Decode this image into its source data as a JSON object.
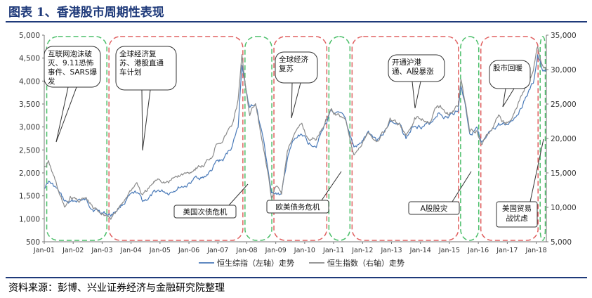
{
  "title": "图表 1、香港股市周期性表现",
  "source": "资料来源：彭博、兴业证券经济与金融研究院整理",
  "chart_data": {
    "type": "line",
    "x_ticks": [
      "Jan-01",
      "Jan-02",
      "Jan-03",
      "Jan-04",
      "Jan-05",
      "Jan-06",
      "Jan-07",
      "Jan-08",
      "Jan-09",
      "Jan-10",
      "Jan-11",
      "Jan-12",
      "Jan-13",
      "Jan-14",
      "Jan-15",
      "Jan-16",
      "Jan-17",
      "Jan-18"
    ],
    "x_range": [
      2001.0,
      2018.35
    ],
    "y_left": {
      "range": [
        500,
        5000
      ],
      "ticks": [
        "500",
        "1,000",
        "1,500",
        "2,000",
        "2,500",
        "3,000",
        "3,500",
        "4,000",
        "4,500",
        "5,000"
      ]
    },
    "y_right": {
      "range": [
        5000,
        35000
      ],
      "ticks": [
        "5,000",
        "10,000",
        "15,000",
        "20,000",
        "25,000",
        "30,000",
        "35,000"
      ]
    },
    "series": [
      {
        "name": "恒生综指（左轴）走势",
        "axis": "left",
        "color": "#4a7ab8",
        "points": [
          [
            2001.0,
            1700
          ],
          [
            2001.15,
            1820
          ],
          [
            2001.4,
            1660
          ],
          [
            2001.7,
            1370
          ],
          [
            2001.9,
            1330
          ],
          [
            2002.2,
            1420
          ],
          [
            2002.45,
            1380
          ],
          [
            2002.7,
            1230
          ],
          [
            2002.95,
            1160
          ],
          [
            2003.3,
            1080
          ],
          [
            2003.6,
            1260
          ],
          [
            2003.9,
            1450
          ],
          [
            2004.2,
            1540
          ],
          [
            2004.4,
            1380
          ],
          [
            2004.7,
            1490
          ],
          [
            2004.95,
            1600
          ],
          [
            2005.3,
            1580
          ],
          [
            2005.6,
            1700
          ],
          [
            2005.95,
            1740
          ],
          [
            2006.3,
            1910
          ],
          [
            2006.5,
            1890
          ],
          [
            2006.8,
            2060
          ],
          [
            2006.95,
            2210
          ],
          [
            2007.2,
            2280
          ],
          [
            2007.5,
            2600
          ],
          [
            2007.7,
            3000
          ],
          [
            2007.83,
            4400
          ],
          [
            2007.95,
            3850
          ],
          [
            2008.1,
            3400
          ],
          [
            2008.3,
            3500
          ],
          [
            2008.55,
            2800
          ],
          [
            2008.75,
            2000
          ],
          [
            2008.85,
            1500
          ],
          [
            2009.0,
            1580
          ],
          [
            2009.2,
            1500
          ],
          [
            2009.4,
            2300
          ],
          [
            2009.6,
            2650
          ],
          [
            2009.9,
            2850
          ],
          [
            2010.1,
            2650
          ],
          [
            2010.4,
            2650
          ],
          [
            2010.7,
            3050
          ],
          [
            2010.9,
            3300
          ],
          [
            2011.1,
            3250
          ],
          [
            2011.4,
            3150
          ],
          [
            2011.7,
            2550
          ],
          [
            2011.9,
            2600
          ],
          [
            2012.2,
            2850
          ],
          [
            2012.5,
            2750
          ],
          [
            2012.8,
            2950
          ],
          [
            2012.95,
            3150
          ],
          [
            2013.3,
            3000
          ],
          [
            2013.5,
            2750
          ],
          [
            2013.8,
            3050
          ],
          [
            2014.0,
            3050
          ],
          [
            2014.3,
            3050
          ],
          [
            2014.6,
            3320
          ],
          [
            2014.95,
            3200
          ],
          [
            2015.3,
            3400
          ],
          [
            2015.4,
            3900
          ],
          [
            2015.55,
            3500
          ],
          [
            2015.7,
            2900
          ],
          [
            2015.95,
            2960
          ],
          [
            2016.1,
            2560
          ],
          [
            2016.4,
            2800
          ],
          [
            2016.7,
            3050
          ],
          [
            2016.95,
            3000
          ],
          [
            2017.3,
            3270
          ],
          [
            2017.6,
            3600
          ],
          [
            2017.9,
            3950
          ],
          [
            2018.05,
            4550
          ],
          [
            2018.2,
            4250
          ],
          [
            2018.35,
            4200
          ]
        ]
      },
      {
        "name": "恒生指数（右轴）走势",
        "axis": "right",
        "color": "#8a8a8a",
        "points": [
          [
            2001.0,
            15800
          ],
          [
            2001.15,
            16400
          ],
          [
            2001.4,
            13500
          ],
          [
            2001.7,
            9800
          ],
          [
            2001.9,
            11400
          ],
          [
            2002.2,
            11000
          ],
          [
            2002.45,
            11200
          ],
          [
            2002.7,
            9700
          ],
          [
            2002.95,
            9300
          ],
          [
            2003.3,
            8600
          ],
          [
            2003.6,
            9800
          ],
          [
            2003.9,
            12000
          ],
          [
            2004.2,
            13600
          ],
          [
            2004.4,
            11600
          ],
          [
            2004.7,
            13000
          ],
          [
            2004.95,
            14200
          ],
          [
            2005.3,
            13600
          ],
          [
            2005.6,
            14500
          ],
          [
            2005.95,
            14900
          ],
          [
            2006.3,
            16000
          ],
          [
            2006.5,
            16000
          ],
          [
            2006.8,
            17500
          ],
          [
            2006.95,
            19500
          ],
          [
            2007.2,
            20100
          ],
          [
            2007.5,
            22000
          ],
          [
            2007.7,
            25500
          ],
          [
            2007.83,
            31600
          ],
          [
            2007.95,
            27800
          ],
          [
            2008.1,
            23500
          ],
          [
            2008.3,
            25000
          ],
          [
            2008.55,
            19000
          ],
          [
            2008.75,
            14000
          ],
          [
            2008.85,
            11000
          ],
          [
            2009.0,
            13000
          ],
          [
            2009.2,
            12000
          ],
          [
            2009.4,
            18000
          ],
          [
            2009.6,
            20500
          ],
          [
            2009.9,
            21800
          ],
          [
            2010.1,
            20000
          ],
          [
            2010.4,
            19800
          ],
          [
            2010.7,
            22500
          ],
          [
            2010.9,
            24500
          ],
          [
            2011.1,
            23500
          ],
          [
            2011.4,
            23000
          ],
          [
            2011.7,
            18000
          ],
          [
            2011.9,
            18500
          ],
          [
            2012.2,
            21000
          ],
          [
            2012.5,
            19500
          ],
          [
            2012.8,
            21500
          ],
          [
            2012.95,
            22700
          ],
          [
            2013.3,
            22000
          ],
          [
            2013.5,
            20200
          ],
          [
            2013.8,
            23000
          ],
          [
            2014.0,
            23000
          ],
          [
            2014.3,
            22800
          ],
          [
            2014.6,
            24800
          ],
          [
            2014.95,
            23700
          ],
          [
            2015.3,
            24800
          ],
          [
            2015.4,
            28500
          ],
          [
            2015.55,
            25000
          ],
          [
            2015.7,
            21000
          ],
          [
            2015.95,
            21500
          ],
          [
            2016.1,
            19000
          ],
          [
            2016.4,
            20800
          ],
          [
            2016.7,
            23300
          ],
          [
            2016.95,
            22000
          ],
          [
            2017.3,
            24300
          ],
          [
            2017.6,
            27000
          ],
          [
            2017.9,
            29600
          ],
          [
            2018.05,
            33000
          ],
          [
            2018.2,
            30500
          ],
          [
            2018.35,
            30000
          ]
        ]
      }
    ],
    "regions": [
      {
        "start": 2001.05,
        "end": 2003.2,
        "color": "#4cbf6a"
      },
      {
        "start": 2003.2,
        "end": 2007.9,
        "color": "#e06060"
      },
      {
        "start": 2007.9,
        "end": 2008.9,
        "color": "#4cbf6a"
      },
      {
        "start": 2008.9,
        "end": 2010.8,
        "color": "#e06060"
      },
      {
        "start": 2010.8,
        "end": 2011.6,
        "color": "#4cbf6a"
      },
      {
        "start": 2011.6,
        "end": 2015.35,
        "color": "#e06060"
      },
      {
        "start": 2015.35,
        "end": 2016.05,
        "color": "#4cbf6a"
      },
      {
        "start": 2016.05,
        "end": 2018.1,
        "color": "#e06060"
      },
      {
        "start": 2018.1,
        "end": 2018.35,
        "color": "#4cbf6a"
      }
    ],
    "annotations": [
      {
        "lines": [
          "互联网泡沫破",
          "灭、9.11恐怖",
          "事件、SARS爆",
          "发"
        ],
        "style": "bubble",
        "x": 2001.7,
        "y": 1950
      },
      {
        "lines": [
          "全球经济复",
          "苏、港股直通",
          "车计划"
        ],
        "style": "bubble",
        "x": 2004.8,
        "y": 1550
      },
      {
        "lines": [
          "全球经济",
          "复苏"
        ],
        "style": "bubble",
        "x": 2008.9,
        "y": 2750
      },
      {
        "lines": [
          "开通沪港",
          "通、A股暴涨"
        ],
        "style": "bubble",
        "x": 2014.0,
        "y": 3220
      },
      {
        "lines": [
          "股市回暖"
        ],
        "style": "bubble",
        "x": 2016.9,
        "y": 3270
      },
      {
        "lines": [
          "美国次债危机"
        ],
        "style": "box",
        "x": 2007.83,
        "y": 2270
      },
      {
        "lines": [
          "欧美债务危机"
        ],
        "style": "box",
        "x": 2010.85,
        "y": 2050
      },
      {
        "lines": [
          "A股股灾"
        ],
        "style": "box",
        "x": 2015.4,
        "y": 2070
      },
      {
        "lines": [
          "美国贸易",
          "战忧虑"
        ],
        "style": "box",
        "x": 2018.0,
        "y": 2200
      }
    ]
  }
}
